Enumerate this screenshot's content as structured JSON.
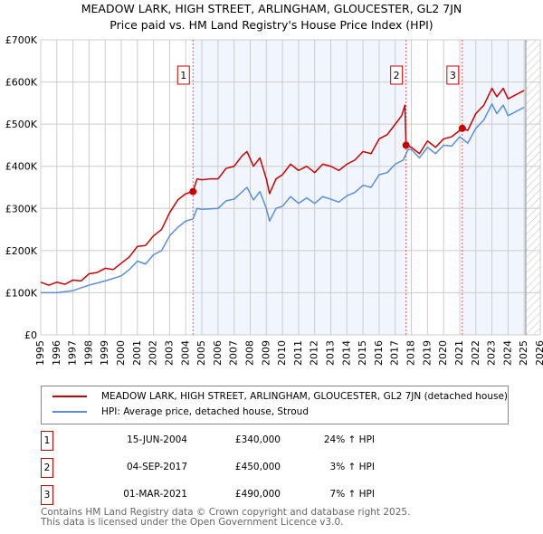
{
  "header": {
    "title": "MEADOW LARK, HIGH STREET, ARLINGHAM, GLOUCESTER, GL2 7JN",
    "subtitle": "Price paid vs. HM Land Registry's House Price Index (HPI)"
  },
  "chart_data": {
    "type": "line",
    "title": "MEADOW LARK, HIGH STREET, ARLINGHAM, GLOUCESTER, GL2 7JN",
    "subtitle": "Price paid vs. HM Land Registry's House Price Index (HPI)",
    "xlim": [
      1995,
      2026
    ],
    "ylim": [
      0,
      700000
    ],
    "x_ticks": [
      "1995",
      "1996",
      "1997",
      "1998",
      "1999",
      "2000",
      "2001",
      "2002",
      "2003",
      "2004",
      "2005",
      "2006",
      "2007",
      "2008",
      "2009",
      "2010",
      "2011",
      "2012",
      "2013",
      "2014",
      "2015",
      "2016",
      "2017",
      "2018",
      "2019",
      "2020",
      "2021",
      "2022",
      "2023",
      "2024",
      "2025",
      "2026"
    ],
    "y_ticks": [
      "£0",
      "£100K",
      "£200K",
      "£300K",
      "£400K",
      "£500K",
      "£600K",
      "£700K"
    ],
    "grid": true,
    "series": [
      {
        "name": "MEADOW LARK, HIGH STREET, ARLINGHAM, GLOUCESTER, GL2 7JN (detached house)",
        "color": "#cc0000",
        "x": [
          1995,
          1995.5,
          1996,
          1996.5,
          1997,
          1997.5,
          1998,
          1998.5,
          1999,
          1999.5,
          2000,
          2000.5,
          2001,
          2001.5,
          2002,
          2002.5,
          2003,
          2003.5,
          2004,
          2004.45,
          2004.7,
          2005,
          2005.5,
          2006,
          2006.5,
          2007,
          2007.5,
          2007.8,
          2008.2,
          2008.6,
          2009,
          2009.2,
          2009.6,
          2010,
          2010.5,
          2011,
          2011.5,
          2012,
          2012.5,
          2013,
          2013.5,
          2014,
          2014.5,
          2015,
          2015.5,
          2016,
          2016.5,
          2017,
          2017.4,
          2017.6,
          2017.67,
          2018,
          2018.5,
          2019,
          2019.5,
          2020,
          2020.5,
          2021.16,
          2021.5,
          2022,
          2022.5,
          2023,
          2023.3,
          2023.7,
          2024,
          2024.5,
          2025
        ],
        "y": [
          125000,
          118000,
          125000,
          120000,
          130000,
          128000,
          145000,
          148000,
          158000,
          155000,
          170000,
          185000,
          210000,
          212000,
          235000,
          250000,
          290000,
          320000,
          335000,
          340000,
          370000,
          368000,
          370000,
          370000,
          395000,
          400000,
          425000,
          435000,
          400000,
          420000,
          370000,
          335000,
          370000,
          380000,
          405000,
          390000,
          400000,
          385000,
          405000,
          400000,
          390000,
          405000,
          415000,
          435000,
          430000,
          465000,
          475000,
          500000,
          520000,
          545000,
          450000,
          445000,
          430000,
          460000,
          445000,
          465000,
          470000,
          490000,
          485000,
          525000,
          545000,
          585000,
          565000,
          585000,
          560000,
          570000,
          580000
        ]
      },
      {
        "name": "HPI: Average price, detached house, Stroud",
        "color": "#5b8fd4",
        "x": [
          1995,
          1996,
          1997,
          1998,
          1999,
          2000,
          2000.5,
          2001,
          2001.5,
          2002,
          2002.5,
          2003,
          2003.5,
          2004,
          2004.45,
          2004.7,
          2005,
          2006,
          2006.5,
          2007,
          2007.8,
          2008.2,
          2008.6,
          2009,
          2009.2,
          2009.6,
          2010,
          2010.5,
          2011,
          2011.5,
          2012,
          2012.5,
          2013,
          2013.5,
          2014,
          2014.5,
          2015,
          2015.5,
          2016,
          2016.5,
          2017,
          2017.5,
          2017.8,
          2018,
          2018.5,
          2019,
          2019.5,
          2020,
          2020.5,
          2021,
          2021.5,
          2022,
          2022.5,
          2023,
          2023.3,
          2023.7,
          2024,
          2024.5,
          2025
        ],
        "y": [
          100000,
          100000,
          105000,
          118000,
          128000,
          140000,
          155000,
          175000,
          168000,
          190000,
          200000,
          235000,
          255000,
          270000,
          275000,
          300000,
          298000,
          300000,
          318000,
          322000,
          350000,
          320000,
          340000,
          300000,
          270000,
          300000,
          305000,
          328000,
          312000,
          325000,
          312000,
          328000,
          322000,
          315000,
          330000,
          338000,
          355000,
          350000,
          380000,
          385000,
          405000,
          415000,
          440000,
          440000,
          420000,
          445000,
          430000,
          450000,
          448000,
          470000,
          455000,
          490000,
          510000,
          548000,
          525000,
          545000,
          520000,
          530000,
          540000
        ]
      }
    ],
    "sales": [
      {
        "label": "1",
        "x": 2004.45,
        "y": 340000
      },
      {
        "label": "2",
        "x": 2017.67,
        "y": 450000
      },
      {
        "label": "3",
        "x": 2021.16,
        "y": 490000
      }
    ],
    "shaded_periods": [
      [
        2004.45,
        2017.67
      ],
      [
        2021.16,
        2025.1
      ]
    ],
    "forecast_hatch_from": 2025.1,
    "legend_placement": "below"
  },
  "legend": {
    "items": [
      {
        "label": "MEADOW LARK, HIGH STREET, ARLINGHAM, GLOUCESTER, GL2 7JN (detached house)",
        "color": "#cc0000"
      },
      {
        "label": "HPI: Average price, detached house, Stroud",
        "color": "#5b8fd4"
      }
    ]
  },
  "transactions": [
    {
      "num": "1",
      "date": "15-JUN-2004",
      "price": "£340,000",
      "hpi": "24% ↑ HPI"
    },
    {
      "num": "2",
      "date": "04-SEP-2017",
      "price": "£450,000",
      "hpi": "3% ↑ HPI"
    },
    {
      "num": "3",
      "date": "01-MAR-2021",
      "price": "£490,000",
      "hpi": "7% ↑ HPI"
    }
  ],
  "footer": {
    "line1": "Contains HM Land Registry data © Crown copyright and database right 2025.",
    "line2": "This data is licensed under the Open Government Licence v3.0."
  }
}
